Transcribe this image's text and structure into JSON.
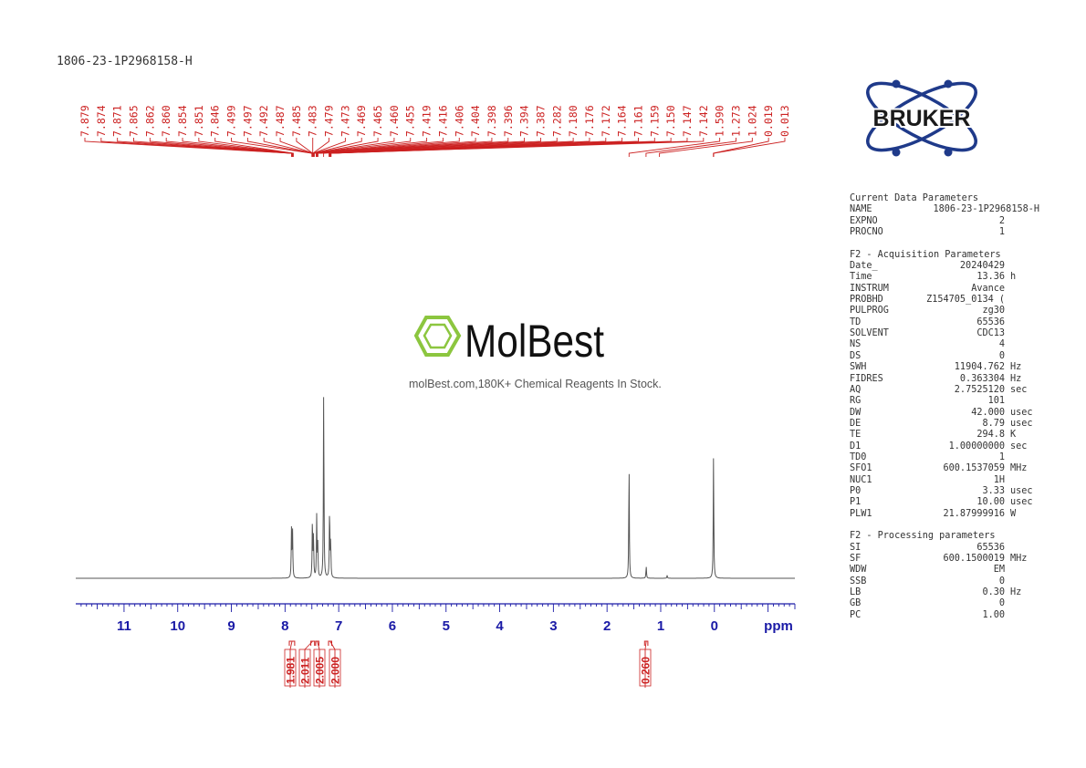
{
  "sample_name": "1806-23-1P2968158-H",
  "logo": {
    "text": "BRUKER",
    "color": "#1f3a8a"
  },
  "watermark": {
    "logo_text": "MolBest",
    "tagline": "molBest.com,180K+ Chemical Reagents In Stock.",
    "accent_color": "#8cc63f"
  },
  "parameters": {
    "current_data": {
      "title": "Current Data Parameters",
      "rows": [
        {
          "key": "NAME",
          "value": "1806-23-1P2968158-H",
          "unit": ""
        },
        {
          "key": "EXPNO",
          "value": "2",
          "unit": ""
        },
        {
          "key": "PROCNO",
          "value": "1",
          "unit": ""
        }
      ]
    },
    "acquisition": {
      "title": "F2 - Acquisition Parameters",
      "rows": [
        {
          "key": "Date_",
          "value": "20240429",
          "unit": ""
        },
        {
          "key": "Time",
          "value": "13.36",
          "unit": "h"
        },
        {
          "key": "INSTRUM",
          "value": "Avance",
          "unit": ""
        },
        {
          "key": "PROBHD",
          "value": "Z154705_0134 (",
          "unit": ""
        },
        {
          "key": "PULPROG",
          "value": "zg30",
          "unit": ""
        },
        {
          "key": "TD",
          "value": "65536",
          "unit": ""
        },
        {
          "key": "SOLVENT",
          "value": "CDC13",
          "unit": ""
        },
        {
          "key": "NS",
          "value": "4",
          "unit": ""
        },
        {
          "key": "DS",
          "value": "0",
          "unit": ""
        },
        {
          "key": "SWH",
          "value": "11904.762",
          "unit": "Hz"
        },
        {
          "key": "FIDRES",
          "value": "0.363304",
          "unit": "Hz"
        },
        {
          "key": "AQ",
          "value": "2.7525120",
          "unit": "sec"
        },
        {
          "key": "RG",
          "value": "101",
          "unit": ""
        },
        {
          "key": "DW",
          "value": "42.000",
          "unit": "usec"
        },
        {
          "key": "DE",
          "value": "8.79",
          "unit": "usec"
        },
        {
          "key": "TE",
          "value": "294.8",
          "unit": "K"
        },
        {
          "key": "D1",
          "value": "1.00000000",
          "unit": "sec"
        },
        {
          "key": "TD0",
          "value": "1",
          "unit": ""
        },
        {
          "key": "SFO1",
          "value": "600.1537059",
          "unit": "MHz"
        },
        {
          "key": "NUC1",
          "value": "1H",
          "unit": ""
        },
        {
          "key": "P0",
          "value": "3.33",
          "unit": "usec"
        },
        {
          "key": "P1",
          "value": "10.00",
          "unit": "usec"
        },
        {
          "key": "PLW1",
          "value": "21.87999916",
          "unit": "W"
        }
      ]
    },
    "processing": {
      "title": "F2 - Processing parameters",
      "rows": [
        {
          "key": "SI",
          "value": "65536",
          "unit": ""
        },
        {
          "key": "SF",
          "value": "600.1500019",
          "unit": "MHz"
        },
        {
          "key": "WDW",
          "value": "EM",
          "unit": ""
        },
        {
          "key": "SSB",
          "value": "0",
          "unit": ""
        },
        {
          "key": "LB",
          "value": "0.30",
          "unit": "Hz"
        },
        {
          "key": "GB",
          "value": "0",
          "unit": ""
        },
        {
          "key": "PC",
          "value": "1.00",
          "unit": ""
        }
      ]
    }
  },
  "chart_data": {
    "type": "line",
    "x_unit_label": "ppm",
    "xlim": [
      11.9,
      -1.5
    ],
    "x_reversed": true,
    "ticks": [
      "11",
      "10",
      "9",
      "8",
      "7",
      "6",
      "5",
      "4",
      "3",
      "2",
      "1",
      "0"
    ],
    "tick_values": [
      11,
      10,
      9,
      8,
      7,
      6,
      5,
      4,
      3,
      2,
      1,
      0
    ],
    "colors": {
      "spectrum": "#555555",
      "axis": "#1a1aa6",
      "labels": "#cc2222"
    },
    "peak_labels": [
      "7.879",
      "7.874",
      "7.871",
      "7.865",
      "7.862",
      "7.860",
      "7.854",
      "7.851",
      "7.846",
      "7.499",
      "7.497",
      "7.492",
      "7.487",
      "7.485",
      "7.483",
      "7.479",
      "7.473",
      "7.469",
      "7.465",
      "7.460",
      "7.455",
      "7.419",
      "7.416",
      "7.406",
      "7.404",
      "7.398",
      "7.396",
      "7.394",
      "7.387",
      "7.282",
      "7.180",
      "7.176",
      "7.172",
      "7.164",
      "7.161",
      "7.159",
      "7.150",
      "7.147",
      "7.142",
      "1.590",
      "1.273",
      "1.024",
      "0.019",
      "0.013"
    ],
    "peak_values": [
      7.879,
      7.874,
      7.871,
      7.865,
      7.862,
      7.86,
      7.854,
      7.851,
      7.846,
      7.499,
      7.497,
      7.492,
      7.487,
      7.485,
      7.483,
      7.479,
      7.473,
      7.469,
      7.465,
      7.46,
      7.455,
      7.419,
      7.416,
      7.406,
      7.404,
      7.398,
      7.396,
      7.394,
      7.387,
      7.282,
      7.18,
      7.176,
      7.172,
      7.164,
      7.161,
      7.159,
      7.15,
      7.147,
      7.142,
      1.59,
      1.273,
      1.024,
      0.019,
      0.013
    ],
    "peaks": [
      {
        "ppm": 7.88,
        "height": 0.24
      },
      {
        "ppm": 7.86,
        "height": 0.23
      },
      {
        "ppm": 7.49,
        "height": 0.29
      },
      {
        "ppm": 7.47,
        "height": 0.21
      },
      {
        "ppm": 7.41,
        "height": 0.31
      },
      {
        "ppm": 7.39,
        "height": 0.16
      },
      {
        "ppm": 7.28,
        "height": 0.95
      },
      {
        "ppm": 7.17,
        "height": 0.35
      },
      {
        "ppm": 7.15,
        "height": 0.18
      },
      {
        "ppm": 1.59,
        "height": 0.57
      },
      {
        "ppm": 1.27,
        "height": 0.06
      },
      {
        "ppm": 0.88,
        "height": 0.015
      },
      {
        "ppm": 0.016,
        "height": 0.61
      }
    ],
    "integrals": [
      {
        "label": "1.981",
        "from": 7.92,
        "to": 7.82
      },
      {
        "label": "2.011",
        "from": 7.52,
        "to": 7.45
      },
      {
        "label": "2.005",
        "from": 7.43,
        "to": 7.37
      },
      {
        "label": "2.000",
        "from": 7.19,
        "to": 7.13
      },
      {
        "label": "0.260",
        "from": 1.3,
        "to": 1.24
      }
    ]
  }
}
